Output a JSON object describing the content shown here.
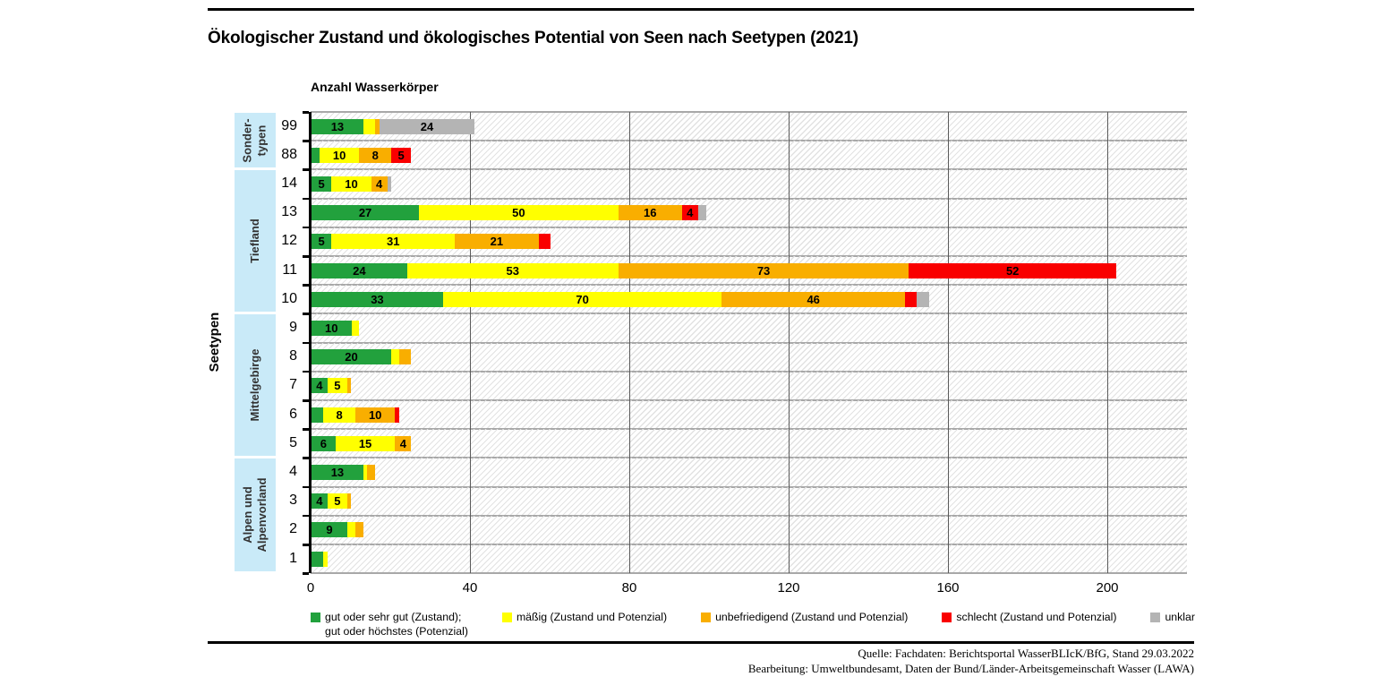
{
  "header": {
    "title": "Ökologischer Zustand und ökologisches Potential von Seen nach Seetypen (2021)",
    "value_axis_title": "Anzahl Wasserkörper",
    "category_axis_title": "Seetypen"
  },
  "source": {
    "line1": "Quelle: Fachdaten: Berichtsportal WasserBLIcK/BfG, Stand 29.03.2022",
    "line2": "Bearbeitung: Umweltbundesamt, Daten der Bund/Länder-Arbeitsgemeinschaft Wasser (LAWA)"
  },
  "colors": {
    "green": "#22a13d",
    "yellow": "#ffff00",
    "orange": "#f9ae00",
    "red": "#f90000",
    "gray": "#b4b4b4",
    "group_box_blue": "#c9eaf8"
  },
  "legend": {
    "items": [
      {
        "series": "green",
        "lines": [
          "gut oder sehr gut (Zustand);",
          "gut oder höchstes (Potenzial)"
        ]
      },
      {
        "series": "yellow",
        "lines": [
          "mäßig (Zustand und Potenzial)"
        ]
      },
      {
        "series": "orange",
        "lines": [
          "unbefriedigend (Zustand und Potenzial)"
        ]
      },
      {
        "series": "red",
        "lines": [
          "schlecht (Zustand und Potenzial)"
        ]
      },
      {
        "series": "gray",
        "lines": [
          "unklar"
        ]
      }
    ]
  },
  "chart_data": {
    "type": "bar",
    "orientation": "horizontal",
    "stacked": true,
    "title": "Ökologischer Zustand und ökologisches Potential von Seen nach Seetypen (2021)",
    "xlabel": "Anzahl Wasserkörper",
    "ylabel": "Seetypen",
    "xlim": [
      0,
      220
    ],
    "x_ticks": [
      0,
      40,
      80,
      120,
      160,
      200
    ],
    "grid": "vertical",
    "legend_position": "bottom",
    "label_min_value": 4,
    "categories": [
      "99",
      "88",
      "14",
      "13",
      "12",
      "11",
      "10",
      "9",
      "8",
      "7",
      "6",
      "5",
      "4",
      "3",
      "2",
      "1"
    ],
    "groups": [
      {
        "lines": [
          "Sonder-",
          "typen"
        ],
        "span": 2
      },
      {
        "lines": [
          "Tiefland"
        ],
        "span": 5
      },
      {
        "lines": [
          "Mittelgebirge"
        ],
        "span": 5
      },
      {
        "lines": [
          "Alpen und",
          "Alpenvorland"
        ],
        "span": 4
      }
    ],
    "series": [
      {
        "key": "green",
        "name": "gut oder sehr gut (Zustand); gut oder höchstes (Potenzial)",
        "color": "#22a13d",
        "values": [
          13,
          2,
          5,
          27,
          5,
          24,
          33,
          10,
          20,
          4,
          3,
          6,
          13,
          4,
          9,
          3
        ]
      },
      {
        "key": "yellow",
        "name": "mäßig (Zustand und Potenzial)",
        "color": "#ffff00",
        "values": [
          3,
          10,
          10,
          50,
          31,
          53,
          70,
          2,
          2,
          5,
          8,
          15,
          1,
          5,
          2,
          1
        ]
      },
      {
        "key": "orange",
        "name": "unbefriedigend (Zustand und Potenzial)",
        "color": "#f9ae00",
        "values": [
          1,
          8,
          4,
          16,
          21,
          73,
          46,
          0,
          3,
          1,
          10,
          4,
          2,
          1,
          2,
          0
        ]
      },
      {
        "key": "red",
        "name": "schlecht (Zustand und Potenzial)",
        "color": "#f90000",
        "values": [
          0,
          5,
          0,
          4,
          3,
          52,
          3,
          0,
          0,
          0,
          1,
          0,
          0,
          0,
          0,
          0
        ]
      },
      {
        "key": "gray",
        "name": "unklar",
        "color": "#b4b4b4",
        "values": [
          24,
          0,
          1,
          2,
          0,
          0,
          3,
          0,
          0,
          0,
          0,
          0,
          0,
          0,
          0,
          0
        ]
      }
    ]
  }
}
